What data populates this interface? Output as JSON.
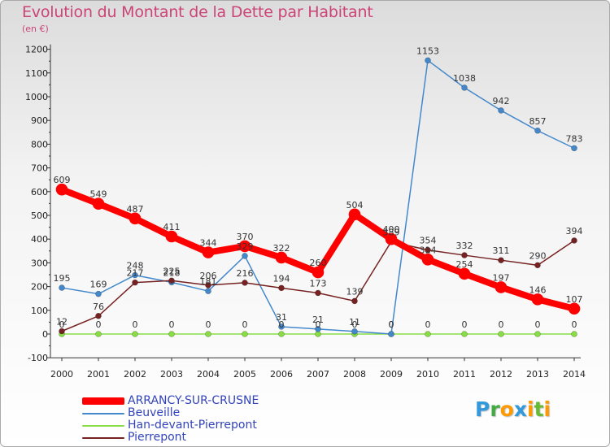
{
  "title": "Evolution du Montant de la Dette par Habitant",
  "subtitle": "(en €)",
  "logo": {
    "letters": [
      "P",
      "r",
      "o",
      "x",
      "i",
      "t",
      "i"
    ],
    "colors": [
      "#3399dd",
      "#44aa44",
      "#ff9900",
      "#3399dd",
      "#ff9900",
      "#66bb33",
      "#ff9900"
    ]
  },
  "chart_data": {
    "type": "line",
    "categories": [
      "2000",
      "2001",
      "2002",
      "2003",
      "2004",
      "2005",
      "2006",
      "2007",
      "2008",
      "2009",
      "2010",
      "2011",
      "2012",
      "2013",
      "2014"
    ],
    "ylim": [
      -100,
      1200
    ],
    "yticks": [
      -100,
      0,
      100,
      200,
      300,
      400,
      500,
      600,
      700,
      800,
      900,
      1000,
      1100,
      1200
    ],
    "ytick_labels": [
      "-100",
      "0",
      "100",
      "200",
      "300",
      "400",
      "500",
      "600",
      "700",
      "800",
      "900",
      "1000",
      "1100",
      "1200"
    ],
    "grid": false,
    "series": [
      {
        "name": "Han-devant-Pierrepont",
        "color": "#88dd44",
        "width": 1.5,
        "marker": 3.5,
        "values": [
          0,
          0,
          0,
          0,
          0,
          0,
          0,
          0,
          0,
          0,
          0,
          0,
          0,
          0,
          0
        ]
      },
      {
        "name": "Beuveille",
        "color": "#4488cc",
        "width": 1.5,
        "marker": 3.5,
        "values": [
          195,
          169,
          248,
          218,
          181,
          329,
          31,
          21,
          11,
          0,
          1153,
          1038,
          942,
          857,
          783
        ]
      },
      {
        "name": "Pierrepont",
        "color": "#772222",
        "width": 1.5,
        "marker": 3.5,
        "values": [
          12,
          76,
          217,
          225,
          206,
          216,
          194,
          173,
          139,
          389,
          354,
          332,
          311,
          290,
          394
        ]
      },
      {
        "name": "ARRANCY-SUR-CRUSNE",
        "color": "#ff0000",
        "width": 8,
        "marker": 7,
        "values": [
          609,
          549,
          487,
          411,
          344,
          370,
          322,
          260,
          504,
          400,
          314,
          254,
          197,
          146,
          107
        ]
      }
    ],
    "legend_order": [
      "ARRANCY-SUR-CRUSNE",
      "Beuveille",
      "Han-devant-Pierrepont",
      "Pierrepont"
    ]
  }
}
